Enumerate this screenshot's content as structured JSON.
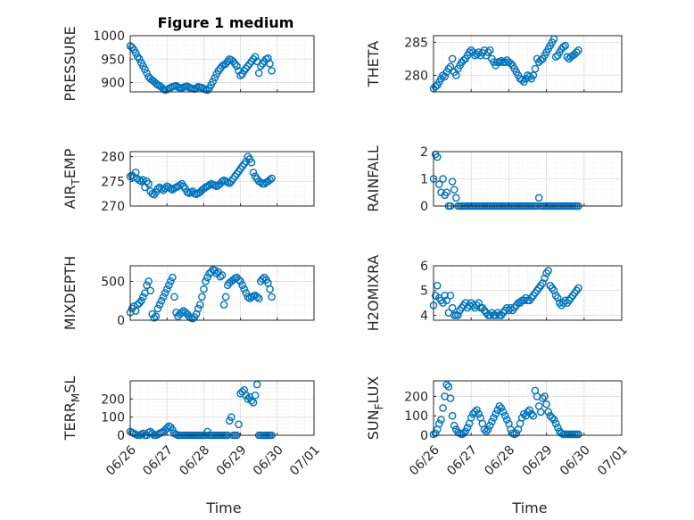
{
  "figure_title": "Figure 1 medium",
  "colors": {
    "marker": "#0072BD",
    "grid": "#dcdcdc",
    "axis": "#262626"
  },
  "chart_data": [
    {
      "type": "scatter",
      "ylabel": "PRESSURE",
      "ylim": [
        880,
        1000
      ],
      "yticks": [
        900,
        950,
        1000
      ],
      "x": [
        0,
        0.05,
        0.1,
        0.15,
        0.2,
        0.25,
        0.3,
        0.35,
        0.4,
        0.45,
        0.5,
        0.55,
        0.6,
        0.65,
        0.7,
        0.75,
        0.8,
        0.85,
        0.9,
        0.95,
        1.0,
        1.05,
        1.1,
        1.15,
        1.2,
        1.25,
        1.3,
        1.35,
        1.4,
        1.45,
        1.5,
        1.55,
        1.6,
        1.65,
        1.7,
        1.75,
        1.8,
        1.85,
        1.9,
        1.95,
        2.0,
        2.05,
        2.1,
        2.15,
        2.2,
        2.25,
        2.3,
        2.35,
        2.4,
        2.45,
        2.5,
        2.55,
        2.6,
        2.65,
        2.7,
        2.75,
        2.8,
        2.85,
        2.9,
        2.95,
        3.0,
        3.05,
        3.1,
        3.15,
        3.2,
        3.25,
        3.3,
        3.35,
        3.4,
        3.45,
        3.5,
        3.55,
        3.6,
        3.65,
        3.7,
        3.75,
        3.8,
        3.85
      ],
      "y": [
        978,
        975,
        970,
        963,
        955,
        950,
        942,
        935,
        928,
        920,
        912,
        908,
        905,
        902,
        898,
        895,
        893,
        890,
        886,
        884,
        885,
        887,
        889,
        891,
        892,
        893,
        890,
        889,
        888,
        890,
        891,
        892,
        890,
        888,
        887,
        886,
        888,
        891,
        890,
        889,
        887,
        885,
        884,
        888,
        895,
        902,
        910,
        918,
        925,
        930,
        935,
        938,
        940,
        945,
        950,
        948,
        945,
        940,
        935,
        925,
        915,
        918,
        925,
        930,
        935,
        940,
        945,
        950,
        955,
        945,
        920,
        935,
        940,
        945,
        950,
        952,
        940,
        925
      ]
    },
    {
      "type": "scatter",
      "ylabel": "THETA",
      "ylim": [
        277.5,
        286
      ],
      "yticks": [
        280,
        285
      ],
      "x": [
        0,
        0.05,
        0.1,
        0.15,
        0.2,
        0.25,
        0.3,
        0.35,
        0.4,
        0.45,
        0.5,
        0.55,
        0.6,
        0.65,
        0.7,
        0.75,
        0.8,
        0.85,
        0.9,
        0.95,
        1.0,
        1.05,
        1.1,
        1.15,
        1.2,
        1.25,
        1.3,
        1.35,
        1.4,
        1.45,
        1.5,
        1.55,
        1.6,
        1.65,
        1.7,
        1.75,
        1.8,
        1.85,
        1.9,
        1.95,
        2.0,
        2.05,
        2.1,
        2.15,
        2.2,
        2.25,
        2.3,
        2.35,
        2.4,
        2.45,
        2.5,
        2.55,
        2.6,
        2.65,
        2.7,
        2.75,
        2.8,
        2.85,
        2.9,
        2.95,
        3.0,
        3.05,
        3.1,
        3.15,
        3.2,
        3.25,
        3.3,
        3.35,
        3.4,
        3.45,
        3.5,
        3.55,
        3.6,
        3.65,
        3.7,
        3.75,
        3.8,
        3.85
      ],
      "y": [
        278,
        278.3,
        278.5,
        279,
        279.5,
        280,
        279.8,
        280.5,
        281,
        281.3,
        282.5,
        280.5,
        280,
        281,
        281.5,
        282,
        282.3,
        282.5,
        283,
        283.5,
        283.8,
        283.5,
        283,
        283.2,
        283.5,
        283,
        283.4,
        283.8,
        283,
        283.5,
        283.8,
        282.5,
        282,
        281.5,
        282,
        282,
        282.2,
        282,
        282,
        282.3,
        282,
        281.8,
        281.5,
        281,
        280.5,
        280,
        279.5,
        279.3,
        279,
        279.5,
        280,
        279.8,
        279.5,
        280,
        281,
        282.5,
        282,
        282.3,
        282.5,
        283,
        283.5,
        284,
        284.5,
        285,
        285.5,
        282.8,
        283,
        283.5,
        284,
        284.3,
        284.5,
        282.8,
        282.5,
        282.8,
        283,
        283.2,
        283.5,
        283.8
      ]
    },
    {
      "type": "scatter",
      "ylabel": "AIR_TEMP",
      "ylim": [
        270,
        281
      ],
      "yticks": [
        270,
        275,
        280
      ],
      "x": [
        0,
        0.05,
        0.1,
        0.15,
        0.2,
        0.25,
        0.3,
        0.35,
        0.4,
        0.45,
        0.5,
        0.55,
        0.6,
        0.65,
        0.7,
        0.75,
        0.8,
        0.85,
        0.9,
        0.95,
        1.0,
        1.05,
        1.1,
        1.15,
        1.2,
        1.25,
        1.3,
        1.35,
        1.4,
        1.45,
        1.5,
        1.55,
        1.6,
        1.65,
        1.7,
        1.75,
        1.8,
        1.85,
        1.9,
        1.95,
        2.0,
        2.05,
        2.1,
        2.15,
        2.2,
        2.25,
        2.3,
        2.35,
        2.4,
        2.45,
        2.5,
        2.55,
        2.6,
        2.65,
        2.7,
        2.75,
        2.8,
        2.85,
        2.9,
        2.95,
        3.0,
        3.05,
        3.1,
        3.15,
        3.2,
        3.25,
        3.3,
        3.35,
        3.4,
        3.45,
        3.5,
        3.55,
        3.6,
        3.65,
        3.7,
        3.75,
        3.8,
        3.85
      ],
      "y": [
        276,
        276.2,
        275.8,
        276.8,
        275.5,
        275.2,
        275,
        275.3,
        273.8,
        275,
        274.5,
        273,
        272.5,
        272.3,
        272.8,
        273.5,
        273.8,
        273.5,
        273.2,
        273.6,
        274,
        273.8,
        273.5,
        273.3,
        273.6,
        273.8,
        274,
        274.2,
        274.5,
        274,
        273.5,
        272.8,
        272.6,
        272.8,
        273,
        272.5,
        272.4,
        272.6,
        272.8,
        273.2,
        273.5,
        273.8,
        274,
        274.2,
        274.5,
        274.3,
        274.2,
        274,
        274.2,
        274.5,
        275,
        275.2,
        275,
        274.8,
        274.6,
        275,
        275.5,
        276,
        276.5,
        277,
        277.5,
        278,
        278.5,
        279,
        280,
        279.5,
        278.8,
        276.8,
        276,
        275.5,
        275,
        274.8,
        274.5,
        274.5,
        274.8,
        275,
        275.3,
        275.6
      ]
    },
    {
      "type": "scatter",
      "ylabel": "RAINFALL",
      "ylim": [
        0,
        2
      ],
      "yticks": [
        0,
        1,
        2
      ],
      "x": [
        0,
        0.05,
        0.1,
        0.15,
        0.2,
        0.25,
        0.3,
        0.35,
        0.4,
        0.45,
        0.5,
        0.55,
        0.6,
        0.65,
        0.7,
        0.75,
        0.8,
        0.85,
        0.9,
        0.95,
        1.0,
        1.05,
        1.1,
        1.15,
        1.2,
        1.25,
        1.3,
        1.35,
        1.4,
        1.45,
        1.5,
        1.55,
        1.6,
        1.65,
        1.7,
        1.75,
        1.8,
        1.85,
        1.9,
        1.95,
        2.0,
        2.05,
        2.1,
        2.15,
        2.2,
        2.25,
        2.3,
        2.35,
        2.4,
        2.45,
        2.5,
        2.55,
        2.6,
        2.65,
        2.7,
        2.75,
        2.8,
        2.85,
        2.9,
        2.95,
        3.0,
        3.05,
        3.1,
        3.15,
        3.2,
        3.25,
        3.3,
        3.35,
        3.4,
        3.45,
        3.5,
        3.55,
        3.6,
        3.65,
        3.7,
        3.75,
        3.8,
        3.85
      ],
      "y": [
        1.0,
        1.9,
        1.8,
        0.8,
        0.5,
        1.0,
        0.4,
        0.5,
        0,
        0,
        0.9,
        0.6,
        0.3,
        0,
        0,
        0,
        0,
        0,
        0,
        0,
        0,
        0,
        0,
        0,
        0,
        0,
        0,
        0,
        0,
        0,
        0,
        0,
        0,
        0,
        0,
        0,
        0,
        0,
        0,
        0,
        0,
        0,
        0,
        0,
        0,
        0,
        0,
        0,
        0,
        0,
        0,
        0,
        0,
        0,
        0,
        0,
        0.3,
        0,
        0,
        0,
        0,
        0,
        0,
        0,
        0,
        0,
        0,
        0,
        0,
        0,
        0,
        0,
        0,
        0,
        0,
        0,
        0,
        0
      ]
    },
    {
      "type": "scatter",
      "ylabel": "MIXDEPTH",
      "ylim": [
        0,
        700
      ],
      "yticks": [
        0,
        500
      ],
      "x": [
        0,
        0.05,
        0.1,
        0.15,
        0.2,
        0.25,
        0.3,
        0.35,
        0.4,
        0.45,
        0.5,
        0.55,
        0.6,
        0.65,
        0.7,
        0.75,
        0.8,
        0.85,
        0.9,
        0.95,
        1.0,
        1.05,
        1.1,
        1.15,
        1.2,
        1.25,
        1.3,
        1.35,
        1.4,
        1.45,
        1.5,
        1.55,
        1.6,
        1.65,
        1.7,
        1.75,
        1.8,
        1.85,
        1.9,
        1.95,
        2.0,
        2.05,
        2.1,
        2.15,
        2.2,
        2.25,
        2.3,
        2.35,
        2.4,
        2.45,
        2.5,
        2.55,
        2.6,
        2.65,
        2.7,
        2.75,
        2.8,
        2.85,
        2.9,
        2.95,
        3.0,
        3.05,
        3.1,
        3.15,
        3.2,
        3.25,
        3.3,
        3.35,
        3.4,
        3.45,
        3.5,
        3.55,
        3.6,
        3.65,
        3.7,
        3.75,
        3.8,
        3.85
      ],
      "y": [
        100,
        150,
        180,
        120,
        200,
        220,
        250,
        300,
        350,
        450,
        500,
        380,
        80,
        30,
        50,
        150,
        200,
        250,
        300,
        350,
        400,
        450,
        500,
        550,
        300,
        100,
        50,
        80,
        100,
        120,
        100,
        80,
        50,
        30,
        20,
        40,
        80,
        150,
        200,
        300,
        400,
        500,
        550,
        600,
        620,
        650,
        640,
        600,
        620,
        560,
        580,
        200,
        300,
        450,
        480,
        500,
        520,
        540,
        550,
        520,
        500,
        450,
        400,
        350,
        300,
        280,
        300,
        310,
        320,
        300,
        280,
        500,
        530,
        550,
        520,
        480,
        400,
        300
      ]
    },
    {
      "type": "scatter",
      "ylabel": "H2OMIXRA",
      "ylim": [
        3.8,
        6
      ],
      "yticks": [
        4,
        5,
        6
      ],
      "x": [
        0,
        0.05,
        0.1,
        0.15,
        0.2,
        0.25,
        0.3,
        0.35,
        0.4,
        0.45,
        0.5,
        0.55,
        0.6,
        0.65,
        0.7,
        0.75,
        0.8,
        0.85,
        0.9,
        0.95,
        1.0,
        1.05,
        1.1,
        1.15,
        1.2,
        1.25,
        1.3,
        1.35,
        1.4,
        1.45,
        1.5,
        1.55,
        1.6,
        1.65,
        1.7,
        1.75,
        1.8,
        1.85,
        1.9,
        1.95,
        2.0,
        2.05,
        2.1,
        2.15,
        2.2,
        2.25,
        2.3,
        2.35,
        2.4,
        2.45,
        2.5,
        2.55,
        2.6,
        2.65,
        2.7,
        2.75,
        2.8,
        2.85,
        2.9,
        2.95,
        3.0,
        3.05,
        3.1,
        3.15,
        3.2,
        3.25,
        3.3,
        3.35,
        3.4,
        3.45,
        3.5,
        3.55,
        3.6,
        3.65,
        3.7,
        3.75,
        3.8,
        3.85
      ],
      "y": [
        4.4,
        4.8,
        5.2,
        4.7,
        4.6,
        4.5,
        4.8,
        4.6,
        4.1,
        4.8,
        4.3,
        4.0,
        4.0,
        4.0,
        4.2,
        4.3,
        4.4,
        4.5,
        4.3,
        4.4,
        4.5,
        4.4,
        4.3,
        4.4,
        4.5,
        4.3,
        4.3,
        4.2,
        4.1,
        4.0,
        4.0,
        4.1,
        4.0,
        4.0,
        4.1,
        4.0,
        4.0,
        4.1,
        4.2,
        4.3,
        4.2,
        4.3,
        4.2,
        4.3,
        4.4,
        4.5,
        4.5,
        4.6,
        4.6,
        4.7,
        4.6,
        4.6,
        4.7,
        4.8,
        4.9,
        5.0,
        5.1,
        5.2,
        5.3,
        5.5,
        5.7,
        5.8,
        5.2,
        5.1,
        5.0,
        4.8,
        4.7,
        4.5,
        4.4,
        4.5,
        4.6,
        4.5,
        4.6,
        4.7,
        4.8,
        4.9,
        5.0,
        5.1
      ]
    },
    {
      "type": "scatter",
      "ylabel": "TERR_MSL",
      "ylim": [
        0,
        300
      ],
      "yticks": [
        0,
        100,
        200
      ],
      "x": [
        0,
        0.05,
        0.1,
        0.15,
        0.2,
        0.25,
        0.3,
        0.35,
        0.4,
        0.45,
        0.5,
        0.55,
        0.6,
        0.65,
        0.7,
        0.75,
        0.8,
        0.85,
        0.9,
        0.95,
        1.0,
        1.05,
        1.1,
        1.15,
        1.2,
        1.25,
        1.3,
        1.35,
        1.4,
        1.45,
        1.5,
        1.55,
        1.6,
        1.65,
        1.7,
        1.75,
        1.8,
        1.85,
        1.9,
        1.95,
        2.0,
        2.05,
        2.1,
        2.15,
        2.2,
        2.25,
        2.3,
        2.35,
        2.4,
        2.45,
        2.5,
        2.55,
        2.6,
        2.65,
        2.7,
        2.75,
        2.8,
        2.85,
        2.9,
        2.95,
        3.0,
        3.05,
        3.1,
        3.15,
        3.2,
        3.25,
        3.3,
        3.35,
        3.4,
        3.45,
        3.5,
        3.55,
        3.6,
        3.65,
        3.7,
        3.75,
        3.8,
        3.85
      ],
      "y": [
        20,
        15,
        10,
        5,
        0,
        0,
        5,
        10,
        0,
        0,
        15,
        20,
        10,
        0,
        0,
        5,
        10,
        15,
        20,
        30,
        40,
        50,
        45,
        30,
        10,
        5,
        0,
        0,
        0,
        0,
        0,
        0,
        0,
        0,
        0,
        0,
        0,
        0,
        0,
        0,
        0,
        0,
        20,
        0,
        0,
        0,
        0,
        0,
        0,
        0,
        0,
        0,
        0,
        0,
        80,
        100,
        0,
        0,
        0,
        60,
        230,
        240,
        250,
        220,
        200,
        210,
        190,
        180,
        220,
        280,
        0,
        0,
        0,
        0,
        0,
        0,
        0,
        0
      ]
    },
    {
      "type": "scatter",
      "ylabel": "SUN_FLUX",
      "ylim": [
        0,
        280
      ],
      "yticks": [
        0,
        100,
        200
      ],
      "x": [
        0,
        0.05,
        0.1,
        0.15,
        0.2,
        0.25,
        0.3,
        0.35,
        0.4,
        0.45,
        0.5,
        0.55,
        0.6,
        0.65,
        0.7,
        0.75,
        0.8,
        0.85,
        0.9,
        0.95,
        1.0,
        1.05,
        1.1,
        1.15,
        1.2,
        1.25,
        1.3,
        1.35,
        1.4,
        1.45,
        1.5,
        1.55,
        1.6,
        1.65,
        1.7,
        1.75,
        1.8,
        1.85,
        1.9,
        1.95,
        2.0,
        2.05,
        2.1,
        2.15,
        2.2,
        2.25,
        2.3,
        2.35,
        2.4,
        2.45,
        2.5,
        2.55,
        2.6,
        2.65,
        2.7,
        2.75,
        2.8,
        2.85,
        2.9,
        2.95,
        3.0,
        3.05,
        3.1,
        3.15,
        3.2,
        3.25,
        3.3,
        3.35,
        3.4,
        3.45,
        3.5,
        3.55,
        3.6,
        3.65,
        3.7,
        3.75,
        3.8,
        3.85
      ],
      "y": [
        5,
        10,
        30,
        60,
        80,
        140,
        200,
        260,
        250,
        190,
        100,
        50,
        30,
        15,
        10,
        5,
        10,
        20,
        40,
        60,
        90,
        110,
        120,
        130,
        110,
        90,
        60,
        30,
        20,
        30,
        50,
        70,
        90,
        110,
        130,
        150,
        140,
        120,
        100,
        80,
        60,
        30,
        10,
        5,
        10,
        30,
        60,
        90,
        110,
        100,
        120,
        130,
        110,
        100,
        230,
        200,
        150,
        120,
        190,
        200,
        160,
        120,
        100,
        90,
        80,
        60,
        40,
        20,
        10,
        5,
        5,
        5,
        5,
        5,
        5,
        5,
        5,
        5
      ]
    }
  ],
  "x_axis": {
    "label": "Time",
    "ticks": [
      "06/26",
      "06/27",
      "06/28",
      "06/29",
      "06/30",
      "07/01"
    ],
    "tick_values": [
      0,
      1,
      2,
      3,
      4,
      5
    ],
    "range": [
      0,
      5
    ]
  }
}
